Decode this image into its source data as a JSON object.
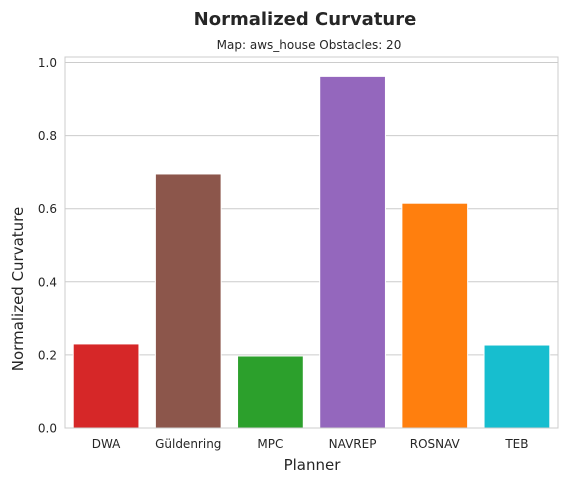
{
  "chart_data": {
    "type": "bar",
    "title": "Normalized Curvature",
    "subtitle": "Map: aws_house Obstacles: 20",
    "xlabel": "Planner",
    "ylabel": "Normalized Curvature",
    "categories": [
      "DWA",
      "Güldenring",
      "MPC",
      "NAVREP",
      "ROSNAV",
      "TEB"
    ],
    "values": [
      0.23,
      0.695,
      0.197,
      0.962,
      0.615,
      0.227
    ],
    "colors": [
      "#d62728",
      "#8c564b",
      "#2ca02c",
      "#9467bd",
      "#ff7f0e",
      "#17becf"
    ],
    "ylim": [
      0,
      1.015
    ],
    "yticks": [
      0.0,
      0.2,
      0.4,
      0.6,
      0.8,
      1.0
    ],
    "ytick_labels": [
      "0.0",
      "0.2",
      "0.4",
      "0.6",
      "0.8",
      "1.0"
    ],
    "grid": "horizontal",
    "legend": "none"
  }
}
